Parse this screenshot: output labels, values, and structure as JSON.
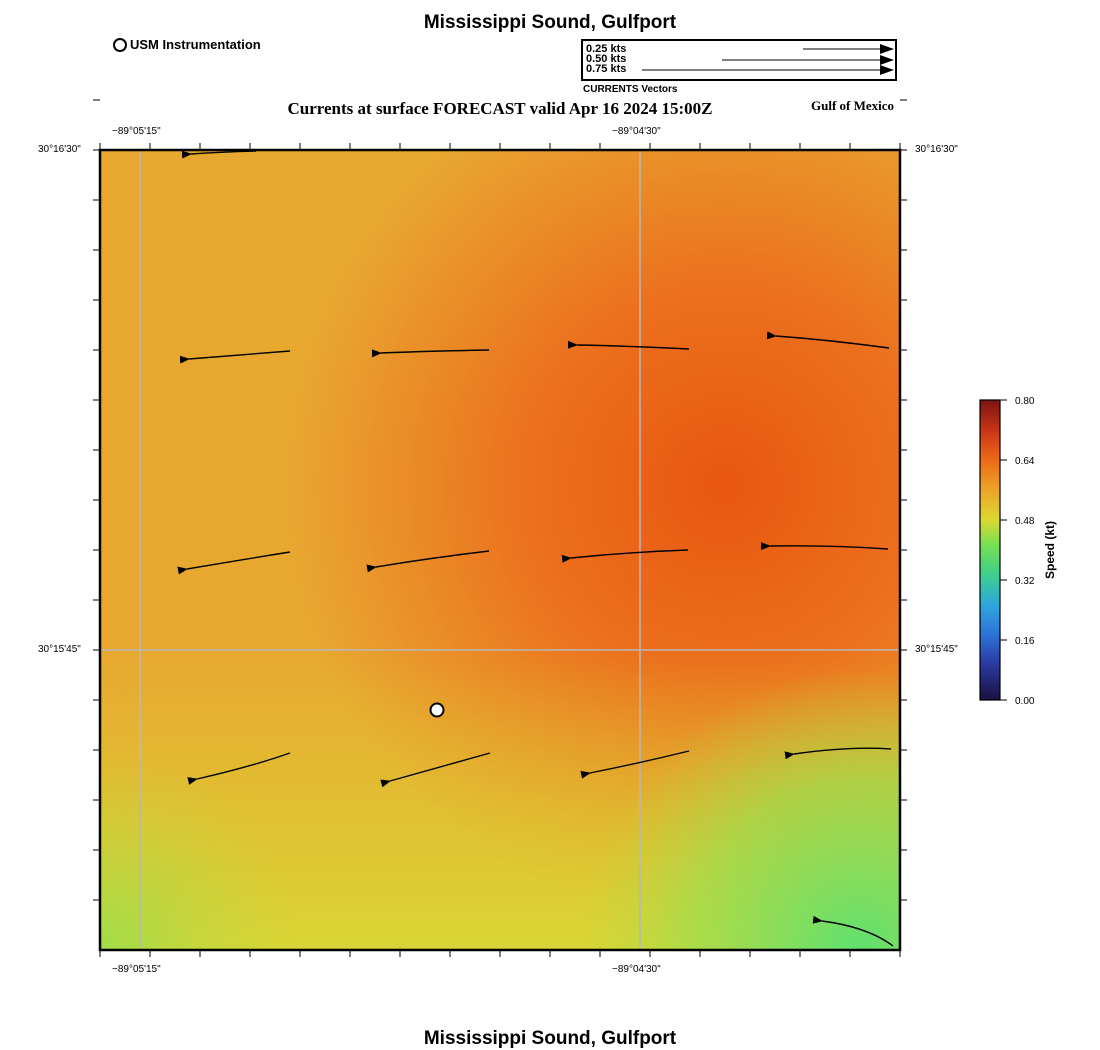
{
  "title_top": "Mississippi Sound, Gulfport",
  "title_bottom": "Mississippi Sound, Gulfport",
  "subtitle": "Currents at surface FORECAST valid Apr 16 2024 15:00Z",
  "region_label": "Gulf of Mexico",
  "station_legend": "USM Instrumentation",
  "vector_legend": {
    "caption": "CURRENTS Vectors",
    "entries": [
      {
        "label": "0.25 kts",
        "speed": 0.25
      },
      {
        "label": "0.50 kts",
        "speed": 0.5
      },
      {
        "label": "0.75 kts",
        "speed": 0.75
      }
    ]
  },
  "axes": {
    "lon_labels": [
      "−89°05'15\"",
      "−89°04'30\""
    ],
    "lat_labels": [
      "30°16'30\"",
      "30°15'45\""
    ]
  },
  "colorbar": {
    "label": "Speed (kt)",
    "ticks": [
      "0.80",
      "0.64",
      "0.48",
      "0.32",
      "0.16",
      "0.00"
    ],
    "min": 0.0,
    "max": 0.8
  },
  "colors": {
    "background": "#e8a830",
    "hot": "#e85a14",
    "warm": "#ec8a28",
    "yellow": "#dcd232",
    "green": "#6ee060"
  },
  "vectors": [
    {
      "row": 1,
      "col": 1,
      "speed": 0.6
    },
    {
      "row": 1,
      "col": 2,
      "speed": 0.65
    },
    {
      "row": 1,
      "col": 3,
      "speed": 0.67
    },
    {
      "row": 1,
      "col": 4,
      "speed": 0.68
    },
    {
      "row": 2,
      "col": 1,
      "speed": 0.6
    },
    {
      "row": 2,
      "col": 2,
      "speed": 0.68
    },
    {
      "row": 2,
      "col": 3,
      "speed": 0.7
    },
    {
      "row": 2,
      "col": 4,
      "speed": 0.7
    },
    {
      "row": 3,
      "col": 1,
      "speed": 0.52
    },
    {
      "row": 3,
      "col": 2,
      "speed": 0.55
    },
    {
      "row": 3,
      "col": 3,
      "speed": 0.55
    },
    {
      "row": 3,
      "col": 4,
      "speed": 0.55
    }
  ]
}
